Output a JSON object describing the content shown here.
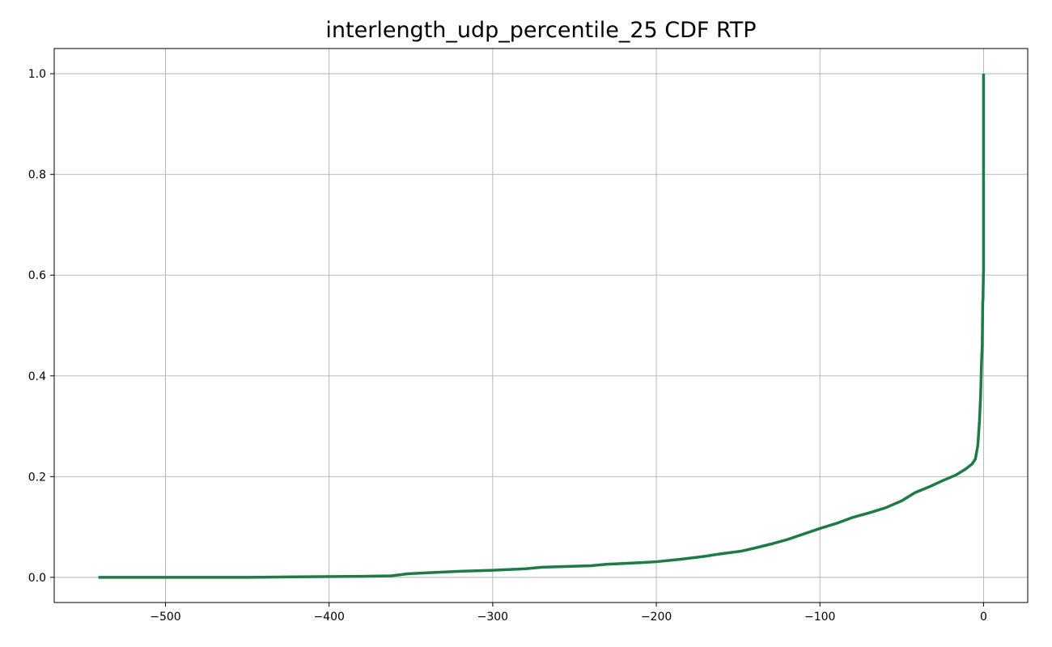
{
  "chart_data": {
    "type": "line",
    "title": "interlength_udp_percentile_25 CDF RTP",
    "xlabel": "",
    "ylabel": "",
    "xlim": [
      -568,
      27
    ],
    "ylim": [
      -0.05,
      1.05
    ],
    "x_ticks": [
      -500,
      -400,
      -300,
      -200,
      -100,
      0
    ],
    "x_tick_labels": [
      "−500",
      "−400",
      "−300",
      "−200",
      "−100",
      "0"
    ],
    "y_ticks": [
      0.0,
      0.2,
      0.4,
      0.6,
      0.8,
      1.0
    ],
    "y_tick_labels": [
      "0.0",
      "0.2",
      "0.4",
      "0.6",
      "0.8",
      "1.0"
    ],
    "grid": true,
    "series": [
      {
        "color": "#1e7b48",
        "points": [
          [
            -541,
            0.0
          ],
          [
            -450,
            0.0
          ],
          [
            -420,
            0.001
          ],
          [
            -380,
            0.002
          ],
          [
            -362,
            0.003
          ],
          [
            -352,
            0.007
          ],
          [
            -340,
            0.009
          ],
          [
            -320,
            0.012
          ],
          [
            -300,
            0.014
          ],
          [
            -280,
            0.017
          ],
          [
            -270,
            0.02
          ],
          [
            -240,
            0.023
          ],
          [
            -230,
            0.026
          ],
          [
            -210,
            0.029
          ],
          [
            -200,
            0.031
          ],
          [
            -185,
            0.036
          ],
          [
            -170,
            0.042
          ],
          [
            -160,
            0.047
          ],
          [
            -148,
            0.052
          ],
          [
            -140,
            0.058
          ],
          [
            -130,
            0.066
          ],
          [
            -120,
            0.075
          ],
          [
            -110,
            0.086
          ],
          [
            -100,
            0.097
          ],
          [
            -90,
            0.107
          ],
          [
            -80,
            0.119
          ],
          [
            -70,
            0.128
          ],
          [
            -60,
            0.138
          ],
          [
            -50,
            0.152
          ],
          [
            -42,
            0.168
          ],
          [
            -33,
            0.18
          ],
          [
            -25,
            0.192
          ],
          [
            -17,
            0.203
          ],
          [
            -11,
            0.215
          ],
          [
            -7,
            0.225
          ],
          [
            -5,
            0.235
          ],
          [
            -3.5,
            0.262
          ],
          [
            -2.5,
            0.31
          ],
          [
            -1.8,
            0.36
          ],
          [
            -1.2,
            0.43
          ],
          [
            -0.8,
            0.46
          ],
          [
            -0.5,
            0.545
          ],
          [
            -0.3,
            0.555
          ],
          [
            -0.1,
            0.6
          ],
          [
            0,
            0.61
          ],
          [
            0,
            1.0
          ]
        ]
      }
    ]
  }
}
